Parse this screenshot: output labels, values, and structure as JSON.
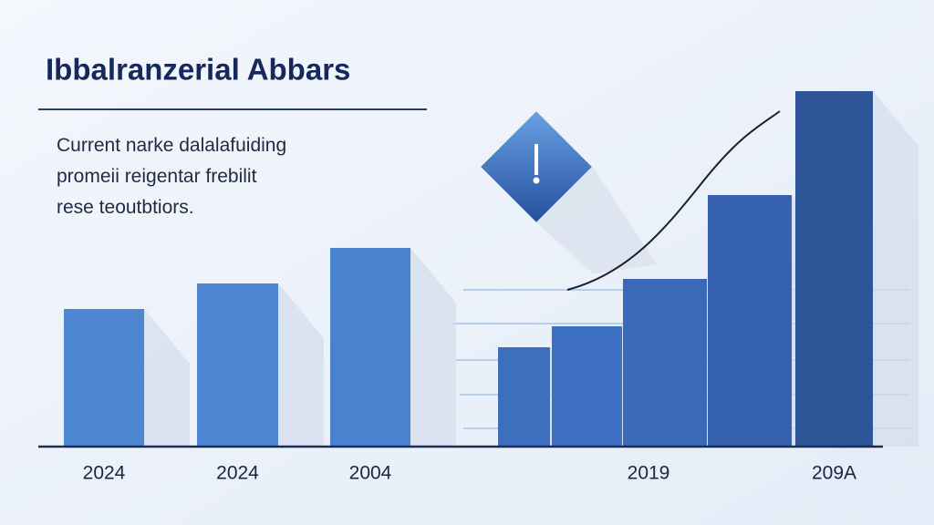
{
  "chart_data": {
    "type": "bar",
    "title": "Ibbalranzerial Abbars",
    "subtitle": [
      "Current narke dalalafuiding",
      "promeii reigentar frebilit",
      "rese teoutbtiors."
    ],
    "categories": [
      "2024",
      "2024",
      "2004",
      null,
      null,
      "2019",
      null,
      "209A"
    ],
    "values": [
      151,
      179,
      218,
      109,
      132,
      184,
      276,
      390
    ],
    "colors": [
      "#4f86d2",
      "#4f86d2",
      "#4b82cf",
      "#3d6fbf",
      "#3d70c0",
      "#3a69b8",
      "#3661ae",
      "#2f5599"
    ]
  }
}
